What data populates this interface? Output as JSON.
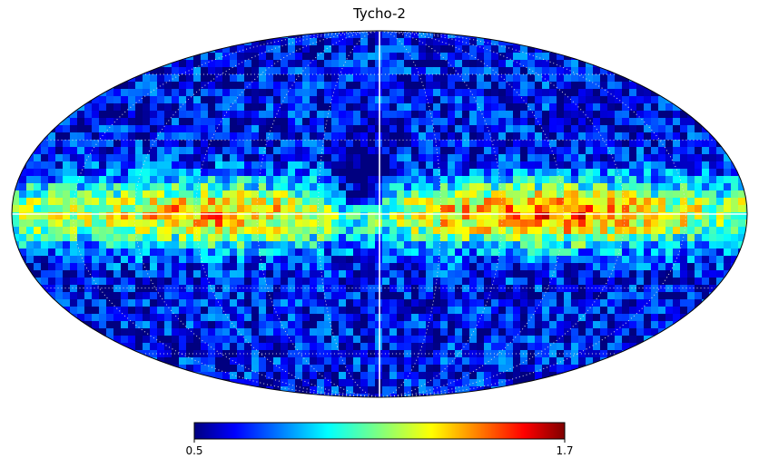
{
  "title": "Tycho-2",
  "projection": "mollweide",
  "colormap": "jet",
  "colorbar": {
    "min_label": "0.5",
    "max_label": "1.7",
    "min": 0.5,
    "max": 1.7
  },
  "graticule": true,
  "colors": {
    "background": "#ffffff",
    "map_base": "#0a1e9e",
    "outline": "#000000",
    "grid": "#ffffff"
  }
}
